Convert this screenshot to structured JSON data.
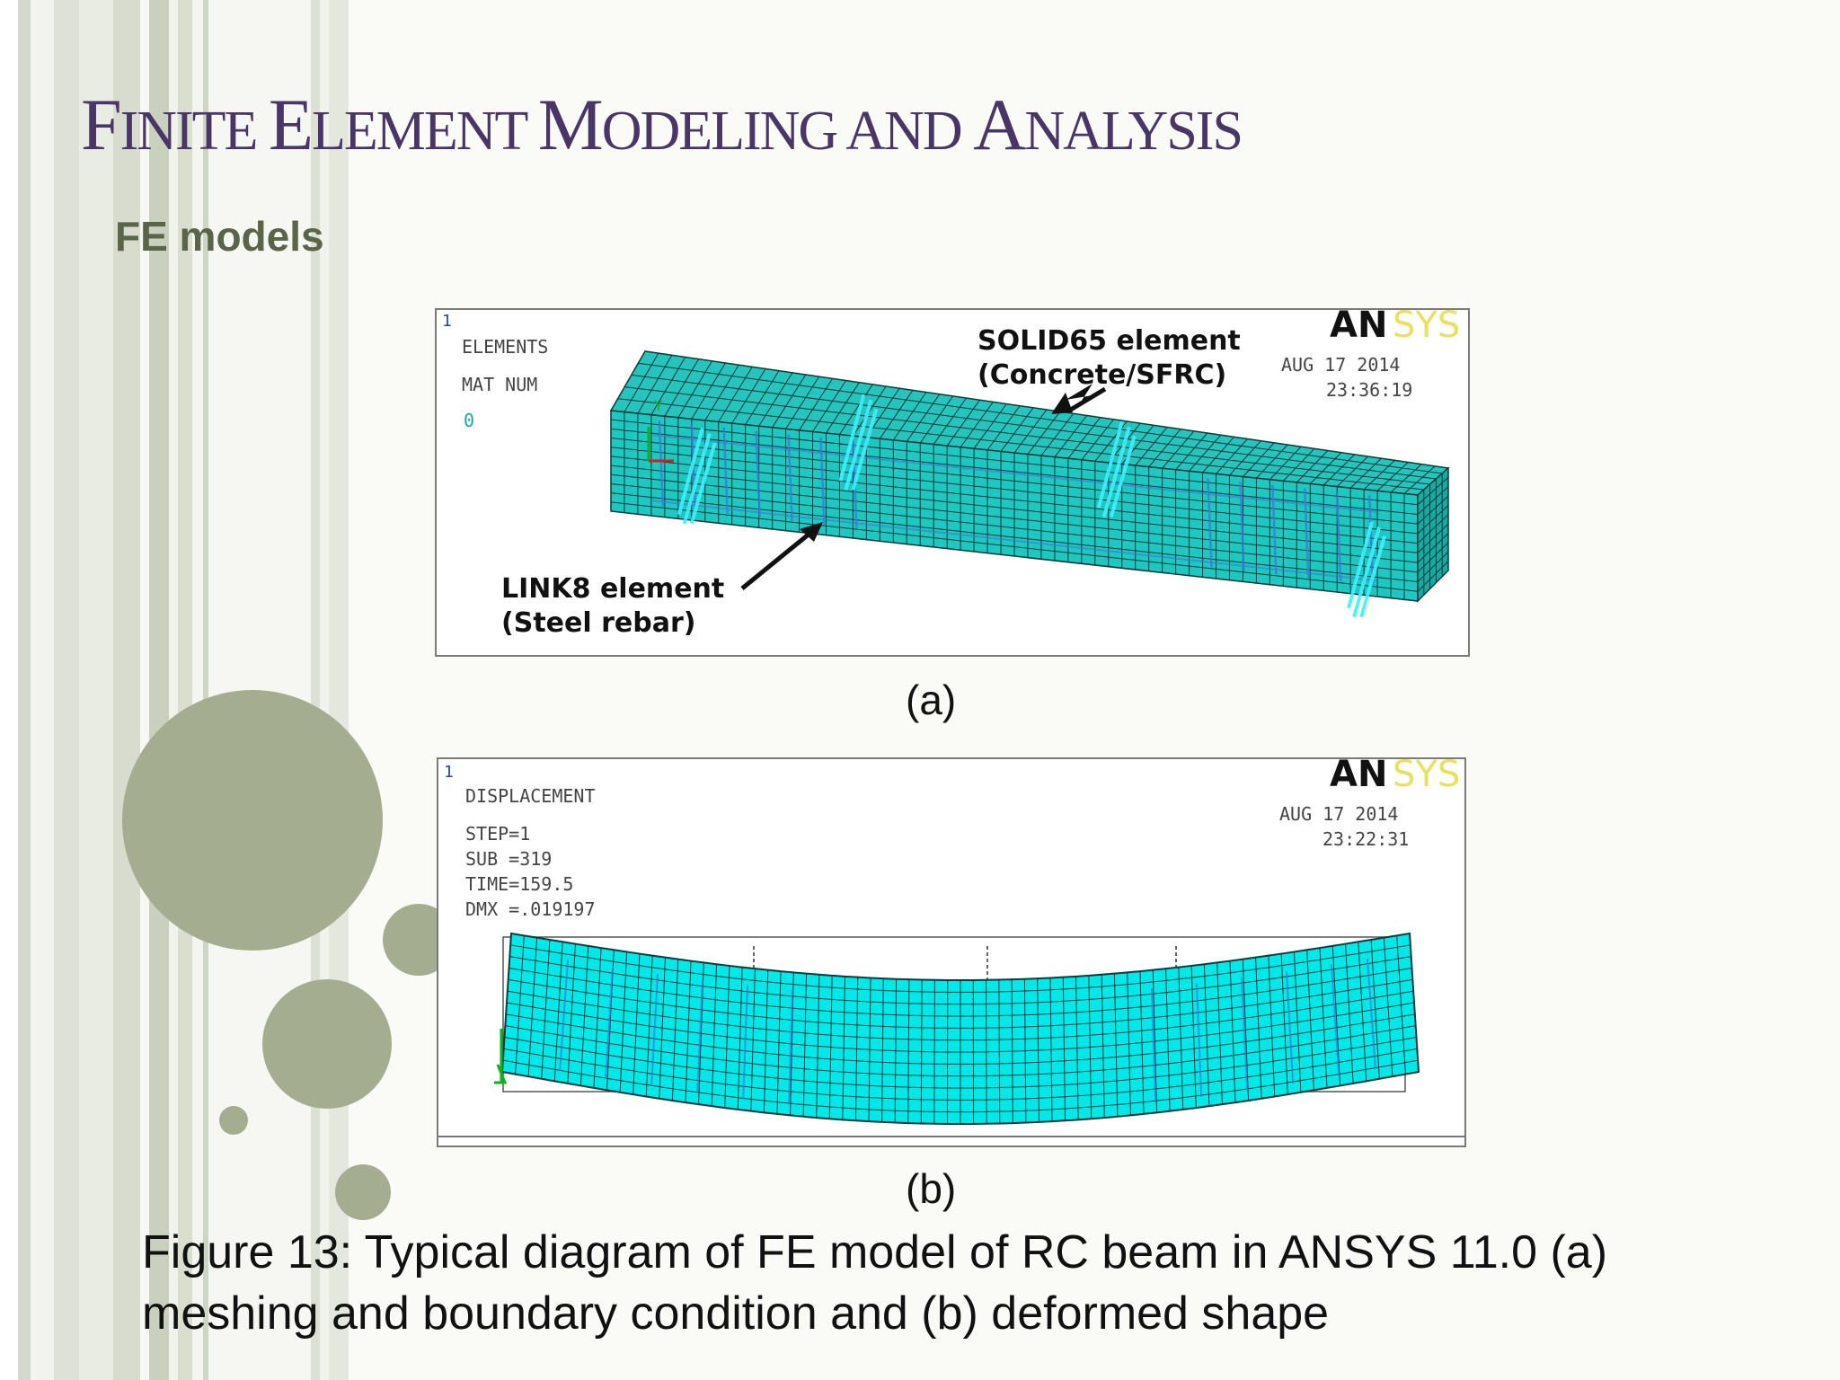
{
  "slide": {
    "title_parts": [
      {
        "text": "F",
        "cls": "cap"
      },
      {
        "text": "INITE ",
        "cls": "sc"
      },
      {
        "text": "E",
        "cls": "cap"
      },
      {
        "text": "LEMENT ",
        "cls": "sc"
      },
      {
        "text": "M",
        "cls": "cap"
      },
      {
        "text": "ODELING AND ",
        "cls": "sc"
      },
      {
        "text": "A",
        "cls": "cap"
      },
      {
        "text": "NALYSIS",
        "cls": "sc"
      }
    ],
    "subtitle": "FE models",
    "label_a": "(a)",
    "label_b": "(b)",
    "caption": "Figure 13: Typical diagram of FE model of RC beam in ANSYS 11.0 (a) meshing and boundary condition and (b) deformed shape"
  },
  "figure_a": {
    "corner_number": "1",
    "header": "ELEMENTS",
    "mat_label": "MAT NUM",
    "zero": "0",
    "logo_an": "AN",
    "logo_sys": "SYS",
    "date": "AUG 17 2014",
    "time": "23:36:19",
    "solid_label_1": "SOLID65 element",
    "solid_label_2": "(Concrete/SFRC)",
    "link_label_1": "LINK8 element",
    "link_label_2": "(Steel rebar)",
    "axis_y": "Y"
  },
  "figure_b": {
    "corner_number": "1",
    "header": "DISPLACEMENT",
    "step": "STEP=1",
    "sub": "SUB =319",
    "time_line": "TIME=159.5",
    "dmx": "DMX =.019197",
    "logo_an": "AN",
    "logo_sys": "SYS",
    "date": "AUG 17 2014",
    "time": "23:22:31"
  },
  "colors": {
    "mesh_fill": "#1ec8c0",
    "mesh_fill_b": "#00e8e8",
    "mesh_line": "#0a3a38",
    "rebar": "#3a7ad8",
    "title": "#4a3567",
    "logo_sys": "#e8e060",
    "circle": "#a4ad90"
  }
}
